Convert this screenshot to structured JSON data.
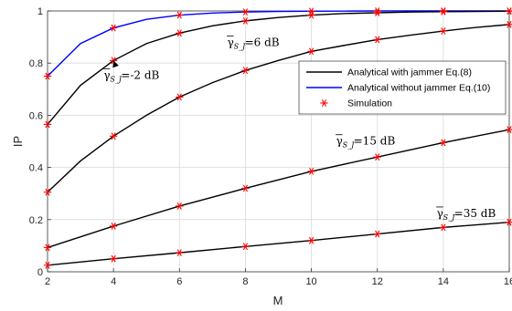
{
  "chart_data": {
    "type": "line",
    "title": "",
    "xlabel": "M",
    "ylabel": "IP",
    "xlim": [
      2,
      16
    ],
    "ylim": [
      0,
      1
    ],
    "xticks": [
      2,
      4,
      6,
      8,
      10,
      12,
      14,
      16
    ],
    "yticks": [
      0,
      0.2,
      0.4,
      0.6,
      0.8,
      1
    ],
    "xtick_labels": [
      "2",
      "4",
      "6",
      "8",
      "10",
      "12",
      "14",
      "16"
    ],
    "ytick_labels": [
      "0",
      "0.2",
      "0.4",
      "0.6",
      "0.8",
      "1"
    ],
    "grid": true,
    "legend_position": "right",
    "legend": [
      {
        "label": "Analytical with jammer Eq.(8)",
        "color": "#000000",
        "style": "line"
      },
      {
        "label": "Analytical without jammer Eq.(10)",
        "color": "#0000ff",
        "style": "line"
      },
      {
        "label": "Simulation",
        "color": "#ff0000",
        "style": "star"
      }
    ],
    "series": [
      {
        "style": "without-jammer",
        "color": "#0000ff",
        "x": [
          2,
          3,
          4,
          5,
          6,
          7,
          8,
          9,
          10,
          11,
          12,
          13,
          14,
          15,
          16
        ],
        "y": [
          0.75,
          0.875,
          0.935,
          0.968,
          0.984,
          0.992,
          0.996,
          0.998,
          0.999,
          0.9995,
          1,
          1,
          1,
          1,
          1
        ],
        "sim_x": [
          2,
          4,
          6,
          8,
          10,
          12,
          14,
          16
        ],
        "sim_y": [
          0.75,
          0.935,
          0.984,
          0.996,
          0.999,
          1,
          1,
          1
        ]
      },
      {
        "style": "with-jammer",
        "color": "#000000",
        "x": [
          2,
          3,
          4,
          5,
          6,
          7,
          8,
          9,
          10,
          11,
          12,
          13,
          14,
          15,
          16
        ],
        "y": [
          0.565,
          0.715,
          0.81,
          0.875,
          0.915,
          0.943,
          0.962,
          0.975,
          0.984,
          0.99,
          0.993,
          0.996,
          0.997,
          0.998,
          0.999
        ],
        "sim_x": [
          2,
          4,
          6,
          8,
          10,
          12,
          14,
          16
        ],
        "sim_y": [
          0.565,
          0.81,
          0.915,
          0.962,
          0.984,
          0.993,
          0.997,
          0.999
        ]
      },
      {
        "style": "with-jammer",
        "color": "#000000",
        "x": [
          2,
          3,
          4,
          5,
          6,
          7,
          8,
          9,
          10,
          11,
          12,
          13,
          14,
          15,
          16
        ],
        "y": [
          0.305,
          0.425,
          0.52,
          0.6,
          0.67,
          0.725,
          0.772,
          0.81,
          0.845,
          0.868,
          0.89,
          0.907,
          0.923,
          0.937,
          0.948
        ],
        "sim_x": [
          2,
          4,
          6,
          8,
          10,
          12,
          14,
          16
        ],
        "sim_y": [
          0.305,
          0.52,
          0.67,
          0.772,
          0.845,
          0.89,
          0.923,
          0.948
        ]
      },
      {
        "style": "with-jammer",
        "color": "#000000",
        "x": [
          2,
          4,
          6,
          8,
          10,
          12,
          14,
          16
        ],
        "y": [
          0.093,
          0.175,
          0.252,
          0.32,
          0.385,
          0.44,
          0.495,
          0.545
        ],
        "sim_x": [
          2,
          4,
          6,
          8,
          10,
          12,
          14,
          16
        ],
        "sim_y": [
          0.093,
          0.175,
          0.252,
          0.32,
          0.385,
          0.44,
          0.495,
          0.545
        ]
      },
      {
        "style": "with-jammer",
        "color": "#000000",
        "x": [
          2,
          4,
          6,
          8,
          10,
          12,
          14,
          16
        ],
        "y": [
          0.025,
          0.05,
          0.073,
          0.097,
          0.12,
          0.145,
          0.17,
          0.19
        ],
        "sim_x": [
          2,
          4,
          6,
          8,
          10,
          12,
          14,
          16
        ],
        "sim_y": [
          0.025,
          0.05,
          0.073,
          0.097,
          0.12,
          0.145,
          0.17,
          0.19
        ]
      }
    ],
    "annotations": [
      {
        "symbol": "γ",
        "sub": "S_J",
        "value": "=-2 dB",
        "at_x": 3.7,
        "at_y": 0.74,
        "arrow_to": [
          4,
          0.81
        ]
      },
      {
        "symbol": "γ",
        "sub": "S_J",
        "value": "=6 dB",
        "at_x": 7.45,
        "at_y": 0.865
      },
      {
        "symbol": "γ",
        "sub": "S_J",
        "value": "=15 dB",
        "at_x": 10.75,
        "at_y": 0.487
      },
      {
        "symbol": "γ",
        "sub": "S_J",
        "value": "=35 dB",
        "at_x": 13.8,
        "at_y": 0.21
      }
    ]
  }
}
